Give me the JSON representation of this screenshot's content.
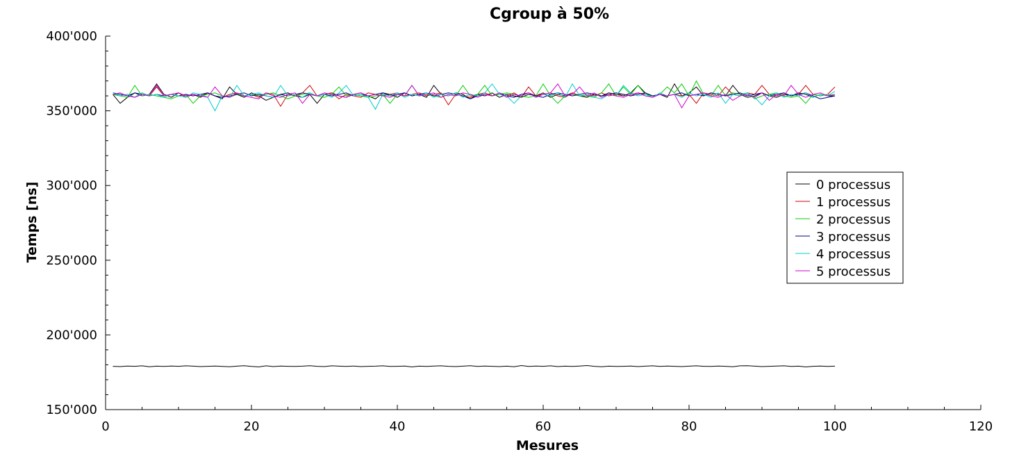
{
  "chart_data": {
    "type": "line",
    "title": "Cgroup à 50%",
    "xlabel": "Mesures",
    "ylabel": "Temps [ns]",
    "xlim": [
      0,
      120
    ],
    "ylim": [
      150000,
      400000
    ],
    "x_ticks": [
      0,
      20,
      40,
      60,
      80,
      100,
      120
    ],
    "x_tick_labels": [
      "0",
      "20",
      "40",
      "60",
      "80",
      "100",
      "120"
    ],
    "y_ticks": [
      150000,
      200000,
      250000,
      300000,
      350000,
      400000
    ],
    "y_tick_labels": [
      "150'000",
      "200'000",
      "250'000",
      "300'000",
      "350'000",
      "400'000"
    ],
    "grid": false,
    "legend_position": "right",
    "x_start": 1,
    "x_end": 100,
    "series": [
      {
        "name": "0 processus",
        "color": "#000000",
        "values": [
          179000,
          178800,
          179200,
          179000,
          179300,
          178700,
          179100,
          178900,
          179200,
          179000,
          179300,
          179100,
          178800,
          179000,
          179200,
          178900,
          178700,
          179100,
          179400,
          178900,
          178600,
          179300,
          178800,
          179200,
          179000,
          178900,
          179100,
          179400,
          179000,
          178800,
          179300,
          179100,
          178900,
          179200,
          178800,
          179000,
          179100,
          179300,
          178900,
          179000,
          179200,
          178600,
          179100,
          178900,
          179200,
          179300,
          179000,
          178800,
          179100,
          179400,
          178900,
          179200,
          179000,
          178800,
          179100,
          178700,
          179500,
          178900,
          179200,
          179000,
          179300,
          178800,
          179100,
          178900,
          179200,
          179500,
          179000,
          178700,
          179100,
          178900,
          179000,
          179200,
          178800,
          179100,
          179300,
          178900,
          179200,
          179000,
          178800,
          179100,
          179300,
          179000,
          178900,
          179200,
          179000,
          178700,
          179300,
          179400,
          179100,
          178800,
          179000,
          179200,
          179300,
          178900,
          179100,
          178600,
          179000,
          179200,
          178900,
          179100
        ]
      },
      {
        "name": "0 processus",
        "color": "#000000",
        "values": [
          361000,
          355000,
          359000,
          362000,
          360000,
          361000,
          368000,
          361000,
          359000,
          362000,
          360000,
          361000,
          359000,
          362000,
          360000,
          358000,
          366000,
          361000,
          359000,
          362000,
          360000,
          357000,
          359000,
          361000,
          362000,
          360000,
          359000,
          361000,
          355000,
          361000,
          362000,
          360000,
          359000,
          361000,
          362000,
          360000,
          358000,
          362000,
          361000,
          359000,
          362000,
          360000,
          361000,
          359000,
          367000,
          361000,
          360000,
          362000,
          361000,
          358000,
          361000,
          360000,
          362000,
          359000,
          361000,
          360000,
          359000,
          361000,
          360000,
          362000,
          359000,
          361000,
          360000,
          362000,
          360000,
          359000,
          361000,
          360000,
          362000,
          361000,
          360000,
          362000,
          367000,
          362000,
          360000,
          361000,
          359000,
          368000,
          360000,
          362000,
          366000,
          360000,
          362000,
          361000,
          360000,
          367000,
          361000,
          359000,
          360000,
          362000,
          360000,
          359000,
          361000,
          360000,
          362000,
          361000,
          359000,
          361000,
          360000,
          360000
        ]
      },
      {
        "name": "1 processus",
        "color": "#cc0000",
        "values": [
          361000,
          360000,
          361000,
          359000,
          362000,
          360000,
          366000,
          360000,
          361000,
          362000,
          359000,
          361000,
          360000,
          362000,
          360000,
          359000,
          361000,
          362000,
          360000,
          361000,
          359000,
          362000,
          361000,
          353000,
          361000,
          360000,
          362000,
          367000,
          360000,
          361000,
          362000,
          358000,
          361000,
          360000,
          359000,
          362000,
          361000,
          360000,
          361000,
          362000,
          360000,
          361000,
          362000,
          360000,
          361000,
          362000,
          354000,
          361000,
          360000,
          359000,
          361000,
          362000,
          360000,
          361000,
          360000,
          362000,
          359000,
          366000,
          360000,
          361000,
          362000,
          360000,
          359000,
          362000,
          360000,
          361000,
          360000,
          362000,
          360000,
          361000,
          361000,
          360000,
          362000,
          361000,
          360000,
          361000,
          360000,
          361000,
          360000,
          361000,
          355000,
          362000,
          361000,
          360000,
          366000,
          361000,
          360000,
          362000,
          361000,
          367000,
          361000,
          360000,
          362000,
          360000,
          361000,
          367000,
          361000,
          360000,
          361000,
          366000
        ]
      },
      {
        "name": "2 processus",
        "color": "#00cc00",
        "values": [
          361000,
          360000,
          359000,
          367000,
          360000,
          361000,
          360000,
          359000,
          358000,
          360000,
          361000,
          355000,
          360000,
          361000,
          362000,
          360000,
          359000,
          361000,
          360000,
          361000,
          360000,
          361000,
          362000,
          360000,
          358000,
          360000,
          361000,
          362000,
          360000,
          359000,
          361000,
          366000,
          360000,
          361000,
          360000,
          359000,
          360000,
          361000,
          355000,
          361000,
          360000,
          367000,
          360000,
          361000,
          360000,
          359000,
          361000,
          360000,
          367000,
          360000,
          361000,
          367000,
          360000,
          361000,
          362000,
          361000,
          360000,
          359000,
          360000,
          368000,
          360000,
          355000,
          360000,
          361000,
          360000,
          360000,
          359000,
          362000,
          368000,
          360000,
          366000,
          361000,
          367000,
          361000,
          360000,
          361000,
          366000,
          362000,
          368000,
          360000,
          370000,
          361000,
          360000,
          367000,
          360000,
          362000,
          361000,
          362000,
          358000,
          360000,
          361000,
          362000,
          360000,
          359000,
          360000,
          355000,
          361000,
          360000,
          361000,
          360000
        ]
      },
      {
        "name": "3 processus",
        "color": "#000080",
        "values": [
          362000,
          361000,
          360000,
          362000,
          361000,
          360000,
          361000,
          360000,
          361000,
          360000,
          361000,
          360000,
          361000,
          362000,
          360000,
          359000,
          360000,
          361000,
          362000,
          360000,
          361000,
          360000,
          359000,
          361000,
          360000,
          361000,
          362000,
          361000,
          360000,
          361000,
          360000,
          361000,
          362000,
          360000,
          361000,
          360000,
          361000,
          362000,
          360000,
          361000,
          362000,
          360000,
          361000,
          362000,
          360000,
          361000,
          362000,
          361000,
          360000,
          358000,
          360000,
          361000,
          360000,
          362000,
          360000,
          359000,
          361000,
          362000,
          360000,
          359000,
          361000,
          362000,
          361000,
          360000,
          361000,
          362000,
          361000,
          360000,
          361000,
          362000,
          361000,
          360000,
          361000,
          362000,
          360000,
          361000,
          360000,
          361000,
          362000,
          360000,
          361000,
          360000,
          362000,
          361000,
          360000,
          361000,
          362000,
          360000,
          361000,
          362000,
          360000,
          361000,
          362000,
          360000,
          361000,
          362000,
          360000,
          358000,
          359000,
          360000
        ]
      },
      {
        "name": "4 processus",
        "color": "#00cccc",
        "values": [
          362000,
          360000,
          361000,
          359000,
          362000,
          360000,
          361000,
          359000,
          361000,
          360000,
          359000,
          362000,
          361000,
          359000,
          350000,
          360000,
          359000,
          367000,
          360000,
          361000,
          362000,
          360000,
          359000,
          367000,
          360000,
          361000,
          359000,
          362000,
          360000,
          361000,
          359000,
          362000,
          367000,
          360000,
          361000,
          359000,
          351000,
          361000,
          360000,
          362000,
          359000,
          361000,
          360000,
          362000,
          359000,
          361000,
          360000,
          362000,
          359000,
          361000,
          360000,
          362000,
          368000,
          361000,
          360000,
          355000,
          360000,
          362000,
          359000,
          361000,
          360000,
          362000,
          359000,
          368000,
          360000,
          361000,
          359000,
          358000,
          361000,
          360000,
          367000,
          362000,
          360000,
          361000,
          359000,
          362000,
          360000,
          361000,
          359000,
          362000,
          360000,
          361000,
          359000,
          362000,
          355000,
          361000,
          360000,
          362000,
          359000,
          354000,
          360000,
          362000,
          359000,
          361000,
          360000,
          362000,
          359000,
          361000,
          360000,
          363000
        ]
      },
      {
        "name": "5 processus",
        "color": "#cc00cc",
        "values": [
          361000,
          362000,
          360000,
          359000,
          361000,
          360000,
          367000,
          360000,
          361000,
          362000,
          360000,
          361000,
          360000,
          359000,
          366000,
          360000,
          359000,
          362000,
          360000,
          359000,
          358000,
          362000,
          360000,
          359000,
          361000,
          362000,
          355000,
          361000,
          360000,
          362000,
          361000,
          360000,
          359000,
          361000,
          362000,
          360000,
          361000,
          360000,
          359000,
          361000,
          360000,
          367000,
          360000,
          361000,
          362000,
          359000,
          361000,
          360000,
          362000,
          361000,
          359000,
          361000,
          360000,
          362000,
          359000,
          361000,
          360000,
          362000,
          359000,
          361000,
          362000,
          368000,
          360000,
          361000,
          366000,
          360000,
          362000,
          359000,
          361000,
          360000,
          359000,
          361000,
          362000,
          360000,
          359000,
          361000,
          360000,
          361000,
          352000,
          360000,
          361000,
          362000,
          360000,
          359000,
          361000,
          357000,
          360000,
          361000,
          359000,
          362000,
          357000,
          361000,
          360000,
          367000,
          361000,
          359000,
          361000,
          362000,
          360000,
          361000
        ]
      }
    ],
    "legend": [
      {
        "name": "0 processus",
        "color": "#000000"
      },
      {
        "name": "1 processus",
        "color": "#cc0000"
      },
      {
        "name": "2 processus",
        "color": "#00cc00"
      },
      {
        "name": "3 processus",
        "color": "#000080"
      },
      {
        "name": "4 processus",
        "color": "#00cccc"
      },
      {
        "name": "5 processus",
        "color": "#cc00cc"
      }
    ]
  }
}
